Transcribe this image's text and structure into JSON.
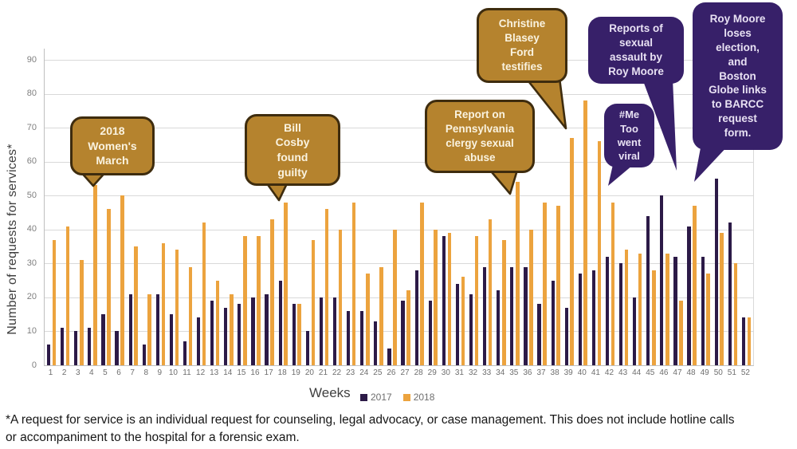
{
  "chart_data": {
    "type": "bar",
    "title": "",
    "xlabel": "Weeks",
    "ylabel": "Number of requests for services*",
    "ylim": [
      0,
      90
    ],
    "ytick_interval": 10,
    "grid": true,
    "legend_position": "bottom",
    "categories": [
      1,
      2,
      3,
      4,
      5,
      6,
      7,
      8,
      9,
      10,
      11,
      12,
      13,
      14,
      15,
      16,
      17,
      18,
      19,
      20,
      21,
      22,
      23,
      24,
      25,
      26,
      27,
      28,
      29,
      30,
      31,
      32,
      33,
      34,
      35,
      36,
      37,
      38,
      39,
      40,
      41,
      42,
      43,
      44,
      45,
      46,
      47,
      48,
      49,
      50,
      51,
      52
    ],
    "series": [
      {
        "name": "2017",
        "color": "#2c1a47",
        "values": [
          6,
          11,
          10,
          11,
          15,
          10,
          21,
          6,
          21,
          15,
          7,
          14,
          19,
          17,
          18,
          20,
          21,
          25,
          18,
          10,
          20,
          20,
          16,
          16,
          13,
          5,
          19,
          28,
          19,
          38,
          24,
          21,
          29,
          22,
          29,
          29,
          18,
          25,
          17,
          27,
          28,
          32,
          30,
          20,
          44,
          50,
          32,
          41,
          32,
          55,
          42,
          14
        ]
      },
      {
        "name": "2018",
        "color": "#eca33e",
        "values": [
          37,
          41,
          31,
          53,
          46,
          50,
          35,
          21,
          36,
          34,
          29,
          42,
          25,
          21,
          38,
          38,
          43,
          48,
          18,
          37,
          46,
          40,
          48,
          27,
          29,
          40,
          22,
          48,
          40,
          39,
          26,
          38,
          43,
          37,
          54,
          40,
          48,
          47,
          67,
          78,
          66,
          48,
          34,
          33,
          28,
          33,
          19,
          47,
          27,
          39,
          30,
          14
        ]
      }
    ],
    "annotations": [
      {
        "id": "womens-march",
        "text": "2018\nWomen's\nMarch",
        "style": "gold",
        "points_to_week": 4
      },
      {
        "id": "bill-cosby",
        "text": "Bill\nCosby\nfound\nguilty",
        "style": "gold",
        "points_to_week": 18
      },
      {
        "id": "pa-clergy",
        "text": "Report on\nPennsylvania\nclergy sexual\nabuse",
        "style": "gold",
        "points_to_week": 35
      },
      {
        "id": "blasey-ford",
        "text": "Christine\nBlasey\nFord\ntestifies",
        "style": "gold",
        "points_to_week": 39
      },
      {
        "id": "rm-reports",
        "text": "Reports of\nsexual\nassault by\nRoy Moore",
        "style": "purple",
        "points_to_week": 46
      },
      {
        "id": "metoo",
        "text": "#Me\nToo\nwent\nviral",
        "style": "purple",
        "points_to_week": 42
      },
      {
        "id": "rm-loses",
        "text": "Roy Moore\nloses\nelection,\nand\nBoston\nGlobe links\nto BARCC\nrequest\nform.",
        "style": "purple",
        "points_to_week": 50
      }
    ]
  },
  "colors": {
    "bar_2017": "#2c1a47",
    "bar_2018": "#eca33e",
    "callout_gold_fill": "#b5832e",
    "callout_gold_border": "#3e2c0e",
    "callout_purple_fill": "#372069",
    "gridline": "#d9d9d9",
    "axis": "#bfbfbf",
    "tick_text": "#6e6e6e"
  },
  "footnote": "*A request for service is an individual request for counseling, legal advocacy, or case management. This does not include hotline calls\nor accompaniment to the hospital for a forensic exam."
}
